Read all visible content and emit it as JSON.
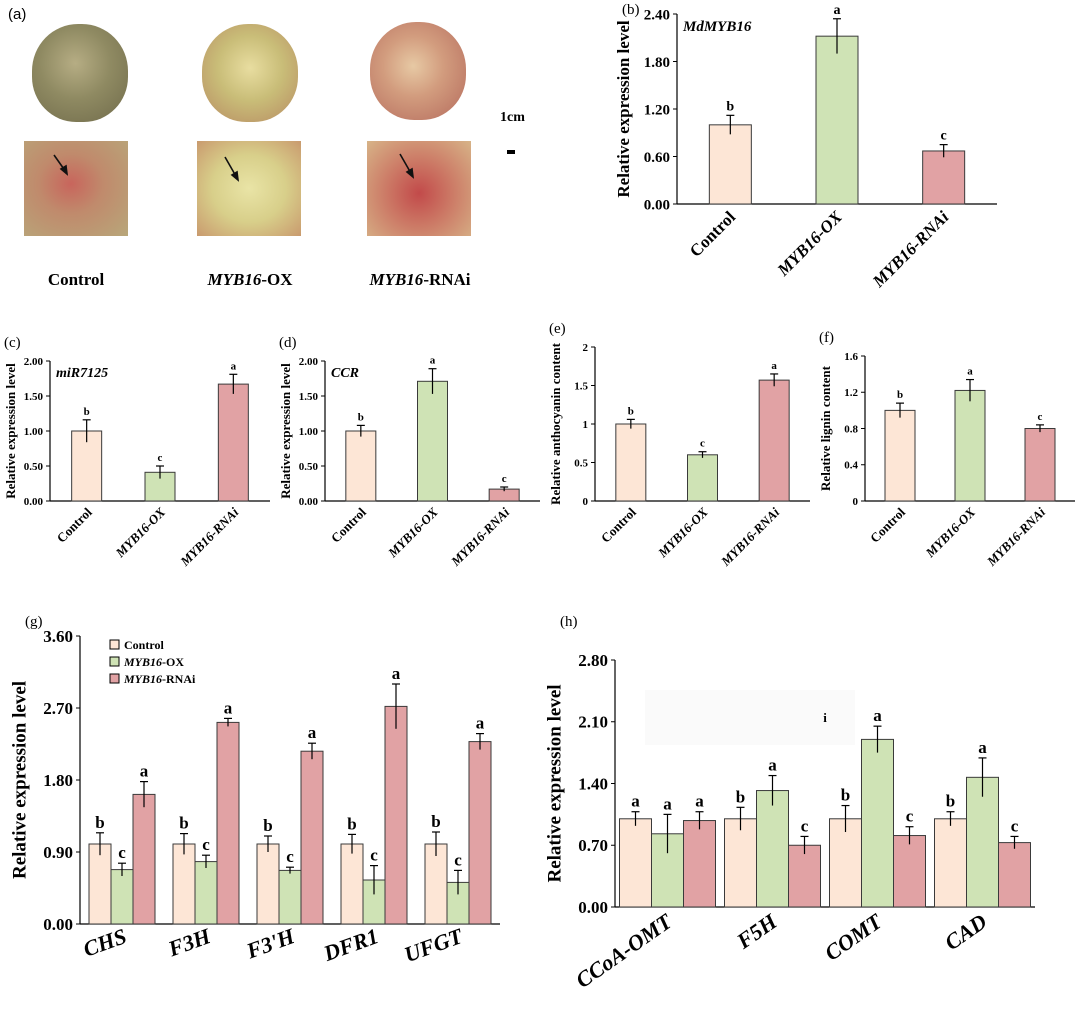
{
  "photos": {
    "panel_label": "(a)",
    "captions": [
      {
        "italic": "",
        "normal": "Control"
      },
      {
        "italic": "MYB16",
        "normal": "-OX"
      },
      {
        "italic": "MYB16",
        "normal": "-RNAi"
      }
    ],
    "scale_label": "1cm",
    "colors": {
      "control": "#8a8a62",
      "ox": "#c9c27a",
      "rnai": "#c98a72",
      "spot": "#b63a3a"
    }
  },
  "colors": {
    "control": "#fde6d6",
    "ox": "#cfe3b5",
    "rnai": "#e1a2a4",
    "outline": "#3a3a3a",
    "stray": "#f0f0f0"
  },
  "chart_data": [
    {
      "id": "b",
      "panel_label": "(b)",
      "type": "bar",
      "title": "MdMYB16",
      "categories": [
        "Control",
        "MYB16-OX",
        "MYB16-RNAi"
      ],
      "italic_categories": [
        false,
        true,
        true
      ],
      "values": [
        1.0,
        2.12,
        0.67
      ],
      "errors": [
        0.12,
        0.22,
        0.08
      ],
      "letters": [
        "b",
        "a",
        "c"
      ],
      "ylabel": "Relative expression level",
      "ylim": [
        0,
        2.4
      ],
      "yticks": [
        0,
        0.6,
        1.2,
        1.8,
        2.4
      ],
      "ytick_labels": [
        "0.00",
        "0.60",
        "1.20",
        "1.80",
        "2.40"
      ]
    },
    {
      "id": "c",
      "panel_label": "(c)",
      "type": "bar",
      "title": "miR7125",
      "categories": [
        "Control",
        "MYB16-OX",
        "MYB16-RNAi"
      ],
      "italic_categories": [
        false,
        true,
        true
      ],
      "values": [
        1.0,
        0.41,
        1.67
      ],
      "errors": [
        0.16,
        0.09,
        0.14
      ],
      "letters": [
        "b",
        "c",
        "a"
      ],
      "ylabel": "Relative expression level",
      "ylim": [
        0,
        2.0
      ],
      "yticks": [
        0,
        0.5,
        1.0,
        1.5,
        2.0
      ],
      "ytick_labels": [
        "0.00",
        "0.50",
        "1.00",
        "1.50",
        "2.00"
      ]
    },
    {
      "id": "d",
      "panel_label": "(d)",
      "type": "bar",
      "title": "CCR",
      "categories": [
        "Control",
        "MYB16-OX",
        "MYB16-RNAi"
      ],
      "italic_categories": [
        false,
        true,
        true
      ],
      "values": [
        1.0,
        1.71,
        0.17
      ],
      "errors": [
        0.08,
        0.18,
        0.03
      ],
      "letters": [
        "b",
        "a",
        "c"
      ],
      "ylabel": "Relative expression level",
      "ylim": [
        0,
        2.0
      ],
      "yticks": [
        0,
        0.5,
        1.0,
        1.5,
        2.0
      ],
      "ytick_labels": [
        "0.00",
        "0.50",
        "1.00",
        "1.50",
        "2.00"
      ]
    },
    {
      "id": "e",
      "panel_label": "(e)",
      "type": "bar",
      "title": "",
      "categories": [
        "Control",
        "MYB16-OX",
        "MYB16-RNAi"
      ],
      "italic_categories": [
        false,
        true,
        true
      ],
      "values": [
        1.0,
        0.6,
        1.57
      ],
      "errors": [
        0.06,
        0.04,
        0.08
      ],
      "letters": [
        "b",
        "c",
        "a"
      ],
      "ylabel": "Relative anthocyanin content",
      "ylim": [
        0,
        2.0
      ],
      "yticks": [
        0,
        0.5,
        1.0,
        1.5,
        2.0
      ],
      "ytick_labels": [
        "0",
        "0.5",
        "1",
        "1.5",
        "2"
      ]
    },
    {
      "id": "f",
      "panel_label": "(f)",
      "type": "bar",
      "title": "",
      "categories": [
        "Control",
        "MYB16-OX",
        "MYB16-RNAi"
      ],
      "italic_categories": [
        false,
        true,
        true
      ],
      "values": [
        1.0,
        1.22,
        0.8
      ],
      "errors": [
        0.08,
        0.12,
        0.04
      ],
      "letters": [
        "b",
        "a",
        "c"
      ],
      "ylabel": "Relative lignin content",
      "ylim": [
        0,
        1.6
      ],
      "yticks": [
        0,
        0.4,
        0.8,
        1.2,
        1.6
      ],
      "ytick_labels": [
        "0",
        "0.4",
        "0.8",
        "1.2",
        "1.6"
      ]
    },
    {
      "id": "g",
      "panel_label": "(g)",
      "type": "bar",
      "categories": [
        "CHS",
        "F3H",
        "F3'H",
        "DFR1",
        "UFGT"
      ],
      "series": [
        {
          "name": "Control",
          "values": [
            1.0,
            1.0,
            1.0,
            1.0,
            1.0
          ],
          "errors": [
            0.14,
            0.13,
            0.1,
            0.12,
            0.15
          ],
          "letters": [
            "b",
            "b",
            "b",
            "b",
            "b"
          ]
        },
        {
          "name": "MYB16-OX",
          "values": [
            0.68,
            0.78,
            0.67,
            0.55,
            0.52
          ],
          "errors": [
            0.08,
            0.08,
            0.04,
            0.18,
            0.15
          ],
          "letters": [
            "c",
            "c",
            "c",
            "c",
            "c"
          ]
        },
        {
          "name": "MYB16-RNAi",
          "values": [
            1.62,
            2.52,
            2.16,
            2.72,
            2.28
          ],
          "errors": [
            0.16,
            0.05,
            0.1,
            0.28,
            0.1
          ],
          "letters": [
            "a",
            "a",
            "a",
            "a",
            "a"
          ]
        }
      ],
      "legend": [
        {
          "italic": "",
          "normal": "Control"
        },
        {
          "italic": "MYB16",
          "normal": "-OX"
        },
        {
          "italic": "MYB16",
          "normal": "-RNAi"
        }
      ],
      "legend_position": "top-left",
      "ylabel": "Relative expression level",
      "ylim": [
        0,
        3.6
      ],
      "yticks": [
        0,
        0.9,
        1.8,
        2.7,
        3.6
      ],
      "ytick_labels": [
        "0.00",
        "0.90",
        "1.80",
        "2.70",
        "3.60"
      ]
    },
    {
      "id": "h",
      "panel_label": "(h)",
      "type": "bar",
      "categories": [
        "CCoA-OMT",
        "F5H",
        "COMT",
        "CAD"
      ],
      "series": [
        {
          "name": "Control",
          "values": [
            1.0,
            1.0,
            1.0,
            1.0
          ],
          "errors": [
            0.08,
            0.13,
            0.15,
            0.08
          ],
          "letters": [
            "a",
            "b",
            "b",
            "b"
          ]
        },
        {
          "name": "MYB16-OX",
          "values": [
            0.83,
            1.32,
            1.9,
            1.47
          ],
          "errors": [
            0.22,
            0.17,
            0.15,
            0.22
          ],
          "letters": [
            "a",
            "a",
            "a",
            "a"
          ]
        },
        {
          "name": "MYB16-RNAi",
          "values": [
            0.98,
            0.7,
            0.81,
            0.73
          ],
          "errors": [
            0.1,
            0.1,
            0.1,
            0.07
          ],
          "letters": [
            "a",
            "c",
            "c",
            "c"
          ]
        }
      ],
      "stray_text": "i",
      "ylabel": "Relative expression level",
      "ylim": [
        0,
        2.8
      ],
      "yticks": [
        0,
        0.7,
        1.4,
        2.1,
        2.8
      ],
      "ytick_labels": [
        "0.00",
        "0.70",
        "1.40",
        "2.10",
        "2.80"
      ]
    }
  ]
}
